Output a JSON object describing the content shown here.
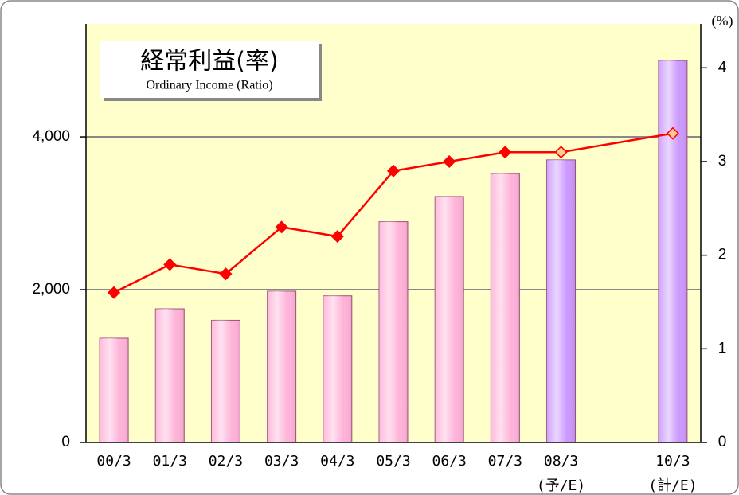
{
  "chart_data": {
    "type": "bar",
    "title": "経常利益(率)",
    "subtitle": "Ordinary Income (Ratio)",
    "y2_label": "(%)",
    "categories": [
      "00/3",
      "01/3",
      "02/3",
      "03/3",
      "04/3",
      "05/3",
      "06/3",
      "07/3",
      "08/3",
      null,
      "10/3"
    ],
    "category_notes": [
      null,
      null,
      null,
      null,
      null,
      null,
      null,
      null,
      "(予/E)",
      null,
      "(計/E)"
    ],
    "series": [
      {
        "type": "bar",
        "values": [
          1365,
          1750,
          1600,
          1980,
          1920,
          2890,
          3220,
          3520,
          3700,
          null,
          5000
        ],
        "colors": [
          "#ffb3d9",
          "#ffb3d9",
          "#ffb3d9",
          "#ffb3d9",
          "#ffb3d9",
          "#ffb3d9",
          "#ffb3d9",
          "#ffb3d9",
          "#cc99ff",
          null,
          "#cc99ff"
        ]
      },
      {
        "type": "line",
        "axis": "y2",
        "color": "#ff0000",
        "values": [
          1.6,
          1.9,
          1.8,
          2.3,
          2.2,
          2.9,
          3.0,
          3.1,
          3.1,
          null,
          3.3
        ],
        "marker_fills": [
          "#ff0000",
          "#ff0000",
          "#ff0000",
          "#ff0000",
          "#ff0000",
          "#ff0000",
          "#ff0000",
          "#ff0000",
          "#ffcc99",
          null,
          "#ffcc99"
        ]
      }
    ],
    "ylim": [
      0,
      5480
    ],
    "yticks": [
      0,
      {
        "value": 2000,
        "label": "2,000"
      },
      {
        "value": 4000,
        "label": "4,000"
      }
    ],
    "y2lim": [
      0,
      4.47
    ],
    "y2ticks": [
      0,
      1,
      2,
      3,
      4
    ],
    "grid": true
  }
}
